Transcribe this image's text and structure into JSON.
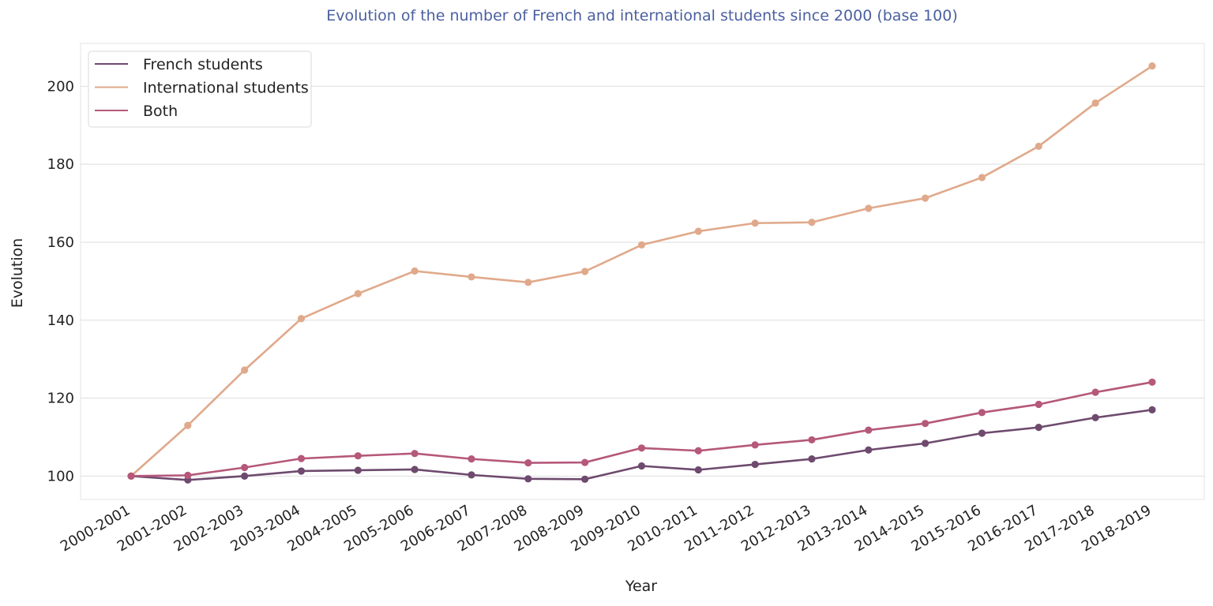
{
  "chart_data": {
    "type": "line",
    "title": "Evolution of the number of French and international students since 2000 (base 100)",
    "title_color": "#4a5fa0",
    "xlabel": "Year",
    "ylabel": "Evolution",
    "ylim": [
      94,
      211
    ],
    "yticks": [
      100,
      120,
      140,
      160,
      180,
      200
    ],
    "grid": true,
    "legend_position": "top-left",
    "categories": [
      "2000-2001",
      "2001-2002",
      "2002-2003",
      "2003-2004",
      "2004-2005",
      "2005-2006",
      "2006-2007",
      "2007-2008",
      "2008-2009",
      "2009-2010",
      "2010-2011",
      "2011-2012",
      "2012-2013",
      "2013-2014",
      "2014-2015",
      "2015-2016",
      "2016-2017",
      "2017-2018",
      "2018-2019"
    ],
    "series": [
      {
        "name": "French students",
        "color": "#6e4a6e",
        "values": [
          100,
          99,
          100,
          101.3,
          101.5,
          101.7,
          100.3,
          99.3,
          99.2,
          102.6,
          101.6,
          103,
          104.4,
          106.7,
          108.4,
          111,
          112.5,
          115,
          117
        ]
      },
      {
        "name": "International students",
        "color": "#e0a98b",
        "values": [
          100,
          113,
          127.2,
          140.4,
          146.8,
          152.6,
          151.1,
          149.7,
          152.5,
          159.3,
          162.8,
          164.9,
          165.1,
          168.7,
          171.3,
          176.6,
          184.6,
          195.7,
          205.2
        ]
      },
      {
        "name": "Both",
        "color": "#b5587a",
        "values": [
          100,
          100.2,
          102.2,
          104.5,
          105.2,
          105.8,
          104.4,
          103.4,
          103.5,
          107.2,
          106.5,
          108,
          109.3,
          111.8,
          113.5,
          116.3,
          118.4,
          121.5,
          124.1
        ]
      }
    ]
  }
}
